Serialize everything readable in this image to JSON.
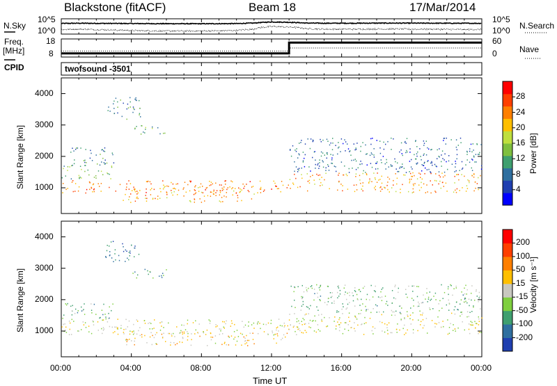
{
  "header": {
    "station": "Blackstone (fitACF)",
    "beam": "Beam 18",
    "date": "17/Mar/2014"
  },
  "noise_panel": {
    "left_label": "N.Sky",
    "right_label": "N.Search",
    "ticks_left": [
      "10^5",
      "10^0"
    ],
    "ticks_right": [
      "10^5",
      "10^0"
    ]
  },
  "freq_panel": {
    "left_label_top": "Freq.",
    "left_label_unit": "[MHz]",
    "right_label": "Nave",
    "ticks_left": [
      "18",
      "8"
    ],
    "ticks_right": [
      "60",
      "0"
    ]
  },
  "cpid_panel": {
    "label": "CPID",
    "value": "twofsound  -3501"
  },
  "power_panel": {
    "ylabel": "Slant Range [km]",
    "colorbar_label": "Power [dB]",
    "colorbar_ticks": [
      "28",
      "24",
      "20",
      "16",
      "12",
      "8",
      "4"
    ],
    "colors": [
      "#0000ff",
      "#1f3fb0",
      "#2f6f9f",
      "#3f9f6f",
      "#7fbf3f",
      "#bfdf3f",
      "#ffbf00",
      "#ff7f00",
      "#ff3f00",
      "#ff0000"
    ]
  },
  "velocity_panel": {
    "ylabel": "Slant Range [km]",
    "colorbar_label": "Velocity [m s⁻¹]",
    "colorbar_ticks": [
      "200",
      "100",
      "50",
      "15",
      "-15",
      "-50",
      "-100",
      "-200"
    ],
    "colors": [
      "#1f3fb0",
      "#2f6f9f",
      "#3f9f6f",
      "#7fcf3f",
      "#c8c8c0",
      "#ffbf00",
      "#ff7f00",
      "#ff3f00",
      "#ff0000"
    ]
  },
  "xaxis": {
    "label": "Time UT",
    "ticks": [
      "00:00",
      "04:00",
      "08:00",
      "12:00",
      "16:00",
      "20:00",
      "00:00"
    ]
  },
  "chart_data": [
    {
      "type": "line",
      "title": "Blackstone (fitACF)",
      "subtitle": "Beam 18",
      "x_range_hours": [
        0,
        24
      ],
      "ylim_left": [
        1,
        100000
      ],
      "series": [
        {
          "name": "N.Sky",
          "x": [
            0,
            1,
            2,
            3,
            4,
            5,
            6,
            7,
            8,
            9,
            10,
            11,
            12,
            13,
            14,
            15,
            16,
            17,
            18,
            19,
            20,
            21,
            22,
            23,
            24
          ],
          "y": [
            3000,
            3500,
            3200,
            3000,
            2800,
            2600,
            2500,
            2400,
            2400,
            2500,
            2700,
            4000,
            9000,
            7000,
            4000,
            3500,
            3500,
            3600,
            3800,
            3800,
            3700,
            3600,
            3500,
            3400,
            3300
          ]
        },
        {
          "name": "N.Search",
          "x": [
            0,
            1,
            2,
            3,
            4,
            5,
            6,
            7,
            8,
            9,
            10,
            11,
            12,
            13,
            14,
            15,
            16,
            17,
            18,
            19,
            20,
            21,
            22,
            23,
            24
          ],
          "y": [
            30,
            40,
            30,
            20,
            15,
            12,
            10,
            10,
            10,
            12,
            15,
            40,
            300,
            200,
            60,
            40,
            40,
            40,
            45,
            45,
            40,
            40,
            35,
            30,
            30
          ]
        }
      ]
    },
    {
      "type": "line",
      "x_range_hours": [
        0,
        24
      ],
      "ylim_left": [
        8,
        18
      ],
      "ylim_right": [
        0,
        60
      ],
      "series": [
        {
          "name": "Freq.",
          "x": [
            0,
            13,
            13,
            24
          ],
          "y": [
            10,
            10,
            16,
            16
          ]
        },
        {
          "name": "Nave",
          "x": [
            0,
            13,
            13,
            24
          ],
          "y": [
            20,
            20,
            30,
            30
          ]
        }
      ]
    },
    {
      "type": "heatmap",
      "title": "Power [dB]",
      "x_range_hours": [
        0,
        24
      ],
      "ylim": [
        180,
        4500
      ],
      "yticks": [
        1000,
        2000,
        3000,
        4000
      ],
      "color_range": [
        0,
        30
      ],
      "regions": [
        {
          "t0": 0,
          "t1": 13,
          "r0": 850,
          "r1": 1250,
          "value": 24
        },
        {
          "t0": 3.5,
          "t1": 11,
          "r0": 550,
          "r1": 1050,
          "value": 22
        },
        {
          "t0": 0,
          "t1": 3,
          "r0": 1300,
          "r1": 1750,
          "value": 12
        },
        {
          "t0": 0.5,
          "t1": 3,
          "r0": 1750,
          "r1": 2300,
          "value": 8
        },
        {
          "t0": 2.5,
          "t1": 4.5,
          "r0": 3200,
          "r1": 3900,
          "value": 8
        },
        {
          "t0": 4,
          "t1": 6,
          "r0": 2700,
          "r1": 3000,
          "value": 12
        },
        {
          "t0": 13,
          "t1": 24,
          "r0": 850,
          "r1": 1500,
          "value": 22
        },
        {
          "t0": 13,
          "t1": 24,
          "r0": 1500,
          "r1": 2600,
          "value": 6
        }
      ]
    },
    {
      "type": "heatmap",
      "title": "Velocity [m s⁻¹]",
      "x_range_hours": [
        0,
        24
      ],
      "ylim": [
        180,
        4500
      ],
      "yticks": [
        1000,
        2000,
        3000,
        4000
      ],
      "color_range": [
        -200,
        200
      ],
      "regions": [
        {
          "t0": 0,
          "t1": 13,
          "r0": 900,
          "r1": 1400,
          "value": 0
        },
        {
          "t0": 3.5,
          "t1": 11,
          "r0": 550,
          "r1": 1000,
          "value": 30
        },
        {
          "t0": 0,
          "t1": 3,
          "r0": 1400,
          "r1": 1900,
          "value": -80
        },
        {
          "t0": 2.5,
          "t1": 4.5,
          "r0": 3200,
          "r1": 3900,
          "value": -150
        },
        {
          "t0": 4,
          "t1": 6,
          "r0": 2700,
          "r1": 3000,
          "value": -100
        },
        {
          "t0": 12,
          "t1": 13,
          "r0": 600,
          "r1": 1300,
          "value": 30
        },
        {
          "t0": 13,
          "t1": 24,
          "r0": 900,
          "r1": 1600,
          "value": 0
        },
        {
          "t0": 13,
          "t1": 24,
          "r0": 1600,
          "r1": 2500,
          "value": -60
        }
      ]
    }
  ]
}
